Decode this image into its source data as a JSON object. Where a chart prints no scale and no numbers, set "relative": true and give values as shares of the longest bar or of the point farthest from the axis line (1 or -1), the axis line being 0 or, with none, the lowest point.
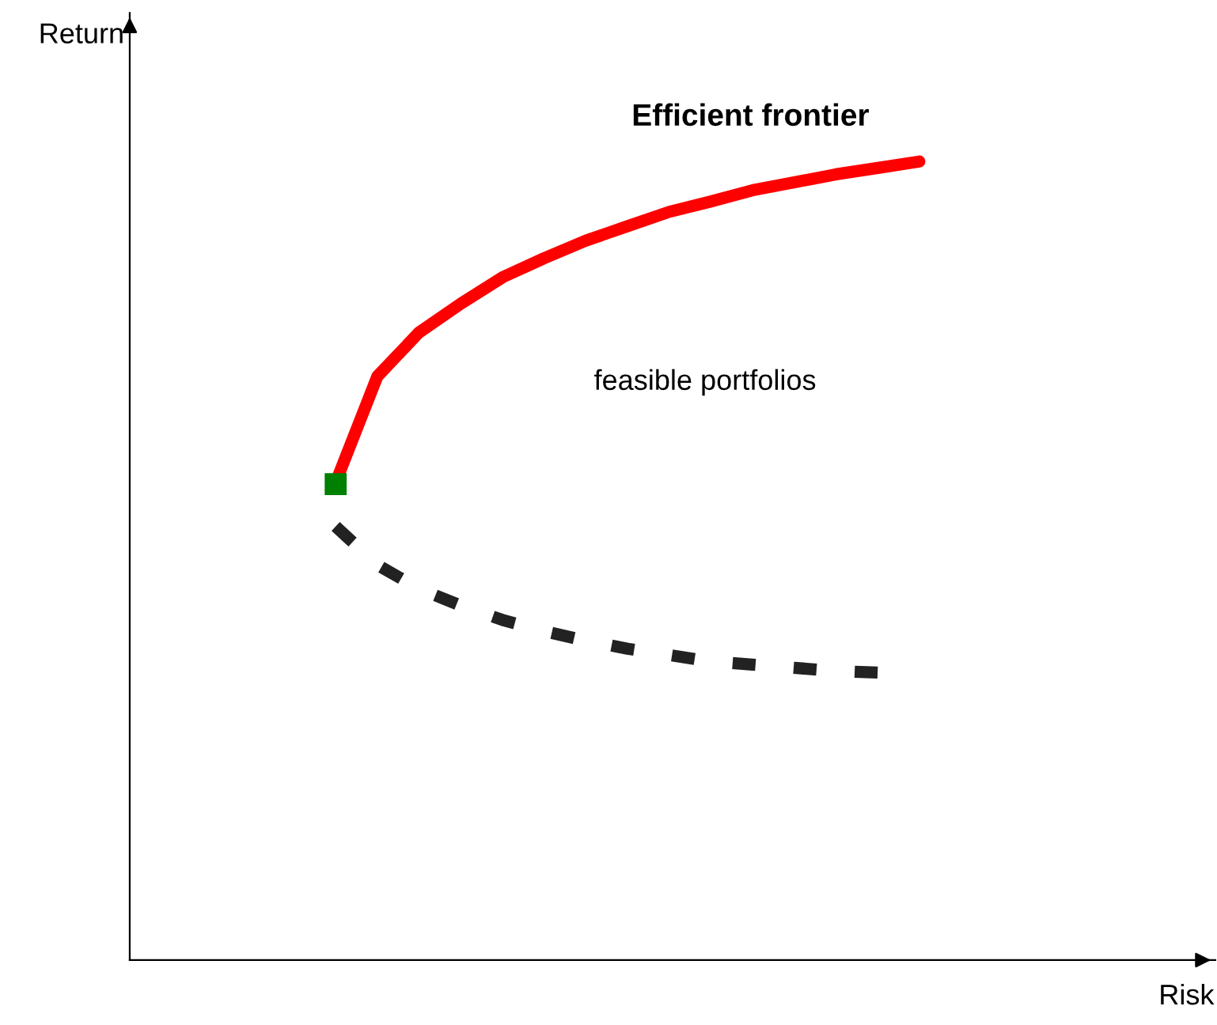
{
  "chart_data": {
    "type": "line",
    "relative": true,
    "tick_labels": false,
    "legend": false,
    "marker": "none",
    "categories": [
      null,
      null,
      null,
      null,
      null,
      null,
      null,
      null,
      null,
      null,
      null,
      null,
      null,
      null,
      null
    ],
    "series": [
      {
        "name": "Efficient frontier",
        "color": "#ff0000",
        "line_style": "solid",
        "values": [
          0.598,
          0.731,
          0.786,
          0.822,
          0.855,
          0.879,
          0.901,
          0.919,
          0.937,
          0.95,
          0.964,
          0.974,
          0.984,
          0.992,
          1.0
        ]
      },
      {
        "color": "#222222",
        "line_style": "dashed",
        "values": [
          0.543,
          0.495,
          0.465,
          0.444,
          0.426,
          0.412,
          0.4,
          0.39,
          0.382,
          0.374,
          0.37,
          0.366,
          0.362,
          0.36,
          null
        ]
      },
      {
        "marker": "square",
        "color": "#008000",
        "values": [
          0.596,
          null,
          null,
          null,
          null,
          null,
          null,
          null,
          null,
          null,
          null,
          null,
          null,
          null,
          null
        ]
      }
    ],
    "annotations": [
      "Return",
      "feasible portfolios",
      "Risk"
    ]
  }
}
